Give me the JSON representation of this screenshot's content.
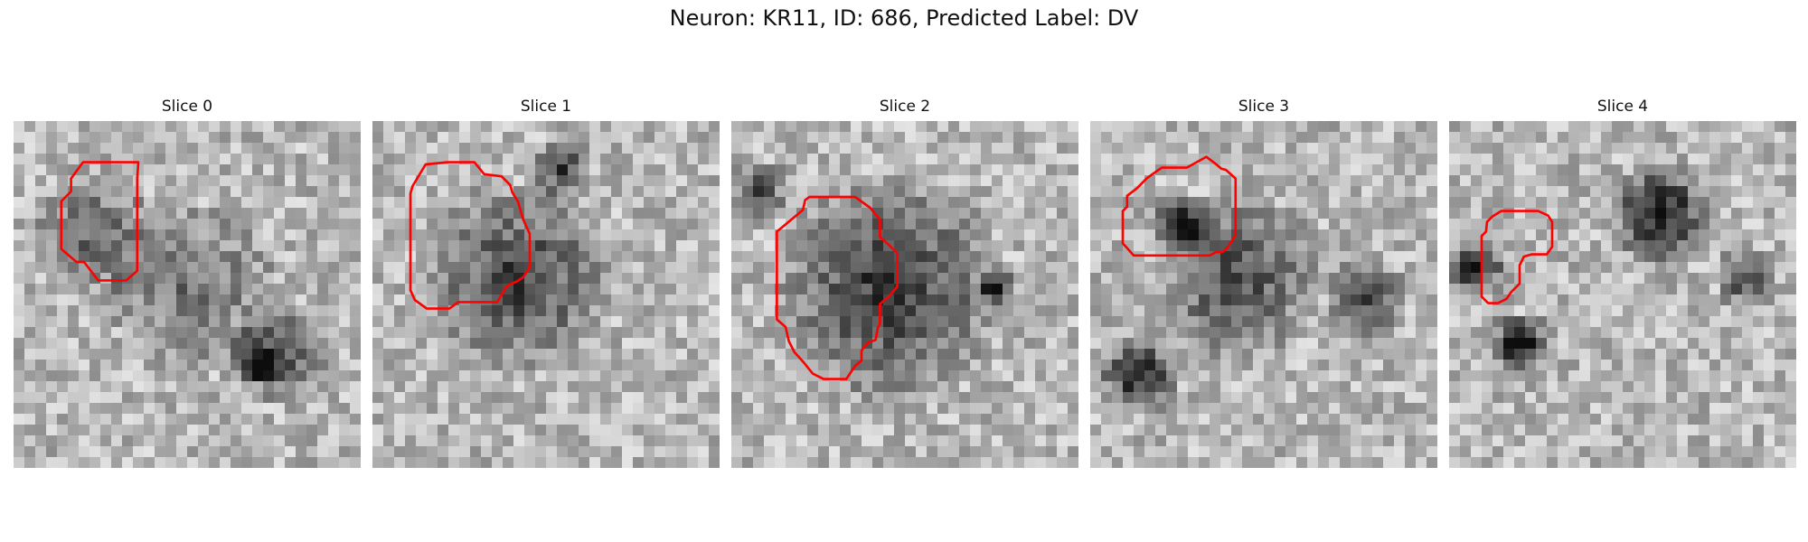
{
  "title": "Neuron: KR11, ID: 686, Predicted Label: DV",
  "colors": {
    "contour": "#ff0000",
    "background": "#ffffff"
  },
  "slices": [
    {
      "label": "Slice 0",
      "contour": [
        [
          11.5,
          3.8
        ],
        [
          6.4,
          3.8
        ],
        [
          5.3,
          5.3
        ],
        [
          5.3,
          6.5
        ],
        [
          4.4,
          7.4
        ],
        [
          4.4,
          11.8
        ],
        [
          5.8,
          13.0
        ],
        [
          6.5,
          13.0
        ],
        [
          7.8,
          14.7
        ],
        [
          10.4,
          14.7
        ],
        [
          11.4,
          13.8
        ],
        [
          11.4,
          5.3
        ]
      ]
    },
    {
      "label": "Slice 1",
      "contour": [
        [
          3.7,
          6.0
        ],
        [
          4.9,
          4.0
        ],
        [
          6.9,
          3.8
        ],
        [
          9.4,
          3.8
        ],
        [
          10.3,
          4.9
        ],
        [
          11.9,
          5.1
        ],
        [
          12.7,
          5.9
        ],
        [
          12.9,
          6.6
        ],
        [
          13.4,
          7.4
        ],
        [
          13.9,
          9.1
        ],
        [
          14.5,
          10.4
        ],
        [
          14.5,
          13.5
        ],
        [
          13.9,
          14.4
        ],
        [
          13.3,
          14.8
        ],
        [
          12.4,
          15.2
        ],
        [
          11.5,
          16.7
        ],
        [
          7.9,
          16.7
        ],
        [
          7.1,
          17.3
        ],
        [
          5.0,
          17.3
        ],
        [
          3.9,
          16.5
        ],
        [
          3.5,
          15.6
        ],
        [
          3.5,
          6.7
        ]
      ]
    },
    {
      "label": "Slice 2",
      "contour": [
        [
          7.2,
          7.0
        ],
        [
          6.8,
          7.3
        ],
        [
          6.6,
          8.2
        ],
        [
          4.2,
          10.2
        ],
        [
          4.2,
          18.3
        ],
        [
          5.0,
          19.0
        ],
        [
          5.3,
          20.3
        ],
        [
          5.8,
          21.3
        ],
        [
          6.7,
          22.3
        ],
        [
          7.5,
          23.3
        ],
        [
          8.5,
          23.8
        ],
        [
          10.6,
          23.8
        ],
        [
          11.4,
          22.6
        ],
        [
          12.0,
          22.1
        ],
        [
          12.0,
          21.2
        ],
        [
          12.2,
          20.9
        ],
        [
          12.7,
          20.4
        ],
        [
          13.3,
          20.2
        ],
        [
          13.5,
          19.1
        ],
        [
          13.7,
          18.7
        ],
        [
          13.7,
          16.9
        ],
        [
          14.5,
          16.2
        ],
        [
          15.3,
          15.3
        ],
        [
          15.3,
          12.2
        ],
        [
          14.5,
          11.4
        ],
        [
          13.7,
          10.7
        ],
        [
          13.7,
          9.1
        ],
        [
          12.8,
          8.0
        ],
        [
          11.4,
          7.0
        ]
      ]
    },
    {
      "label": "Slice 3",
      "contour": [
        [
          8.9,
          4.3
        ],
        [
          6.6,
          4.3
        ],
        [
          5.6,
          5.0
        ],
        [
          5.2,
          5.3
        ],
        [
          4.3,
          6.2
        ],
        [
          3.4,
          6.9
        ],
        [
          3.4,
          7.9
        ],
        [
          3.0,
          8.3
        ],
        [
          3.0,
          11.3
        ],
        [
          3.3,
          11.6
        ],
        [
          4.0,
          12.4
        ],
        [
          11.0,
          12.4
        ],
        [
          11.4,
          12.2
        ],
        [
          11.5,
          12.1
        ],
        [
          12.2,
          12.1
        ],
        [
          12.7,
          11.6
        ],
        [
          13.1,
          11.0
        ],
        [
          13.4,
          10.5
        ],
        [
          13.4,
          5.3
        ],
        [
          12.5,
          4.5
        ],
        [
          12.1,
          4.4
        ],
        [
          11.5,
          3.9
        ],
        [
          10.7,
          3.3
        ]
      ]
    },
    {
      "label": "Slice 4",
      "contour": [
        [
          6.3,
          8.3
        ],
        [
          8.2,
          8.3
        ],
        [
          9.1,
          8.7
        ],
        [
          9.5,
          9.3
        ],
        [
          9.5,
          11.6
        ],
        [
          9.0,
          12.3
        ],
        [
          7.6,
          12.3
        ],
        [
          6.9,
          12.5
        ],
        [
          6.5,
          13.3
        ],
        [
          6.5,
          15.0
        ],
        [
          5.7,
          15.8
        ],
        [
          5.3,
          16.4
        ],
        [
          4.5,
          16.8
        ],
        [
          3.6,
          16.8
        ],
        [
          3.0,
          16.2
        ],
        [
          3.0,
          10.6
        ],
        [
          3.4,
          10.2
        ],
        [
          3.5,
          9.3
        ],
        [
          4.0,
          8.8
        ],
        [
          4.8,
          8.3
        ]
      ]
    }
  ]
}
